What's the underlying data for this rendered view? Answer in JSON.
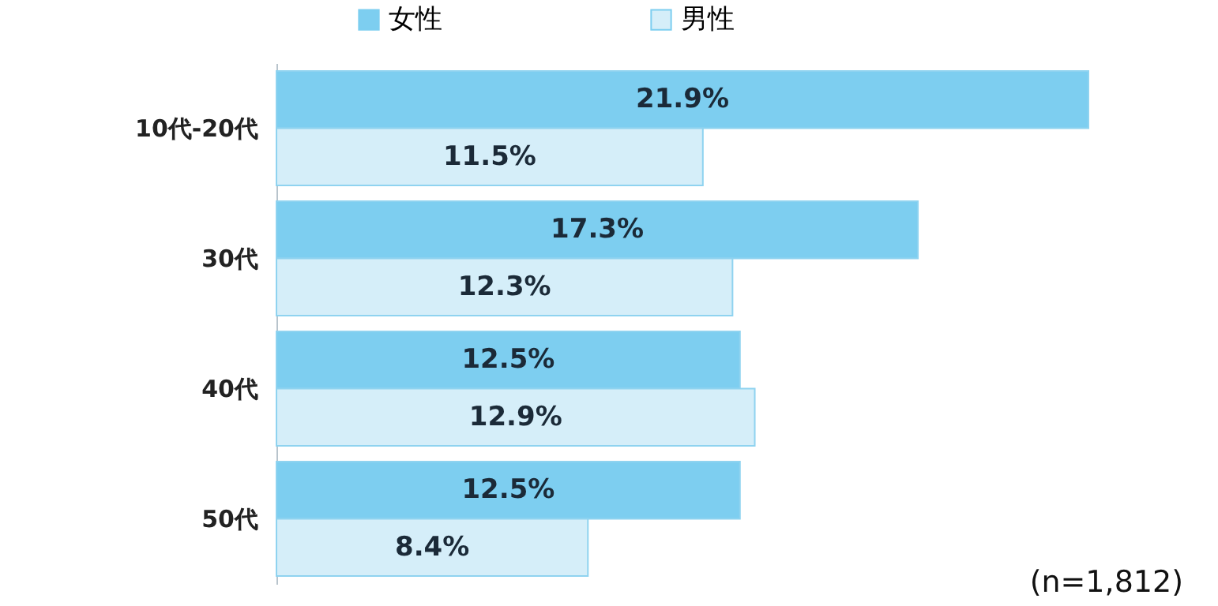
{
  "chart_data": {
    "type": "bar",
    "orientation": "horizontal",
    "categories": [
      "10代-20代",
      "30代",
      "40代",
      "50代"
    ],
    "series": [
      {
        "name": "女性",
        "color": "#7dcef0",
        "values": [
          21.9,
          17.3,
          12.5,
          12.5
        ],
        "value_labels": [
          "21.9%",
          "17.3%",
          "12.5%",
          "12.5%"
        ]
      },
      {
        "name": "男性",
        "color": "#d5eef9",
        "values": [
          11.5,
          12.3,
          12.9,
          8.4
        ],
        "value_labels": [
          "11.5%",
          "12.3%",
          "12.9%",
          "8.4%"
        ]
      }
    ],
    "legend": "top",
    "tick_labels": "y",
    "annotations": [
      "(n=1,812)"
    ]
  }
}
